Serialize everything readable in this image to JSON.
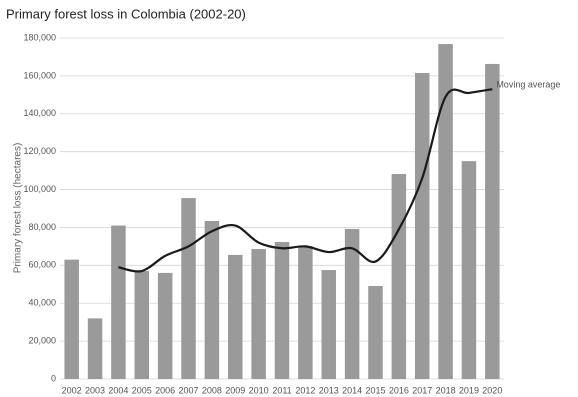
{
  "chart_data": {
    "type": "bar",
    "title": "Primary forest loss in Colombia (2002-20)",
    "y_label": "Primary forest loss (hectares)",
    "categories": [
      "2002",
      "2003",
      "2004",
      "2005",
      "2006",
      "2007",
      "2008",
      "2009",
      "2010",
      "2011",
      "2012",
      "2013",
      "2014",
      "2015",
      "2016",
      "2017",
      "2018",
      "2019",
      "2020"
    ],
    "values": [
      63000,
      32000,
      81000,
      57000,
      56000,
      95500,
      83400,
      65500,
      68600,
      72300,
      70200,
      57500,
      79200,
      49100,
      108200,
      161500,
      176800,
      115000,
      166300
    ],
    "color": "#9a9a9a",
    "line": {
      "name": "Moving average",
      "color": "#1a1a1a",
      "values": [
        null,
        null,
        59000,
        57000,
        65000,
        70000,
        78000,
        81000,
        72000,
        69000,
        70000,
        67000,
        69000,
        62000,
        79000,
        106000,
        149000,
        151000,
        153000
      ]
    },
    "ylim": [
      0,
      180000
    ],
    "yticks": [
      0,
      {
        "value": 20000,
        "label": "20,000"
      },
      {
        "value": 40000,
        "label": "40,000"
      },
      {
        "value": 60000,
        "label": "60,000"
      },
      {
        "value": 80000,
        "label": "80,000"
      },
      {
        "value": 100000,
        "label": "100,000"
      },
      {
        "value": 120000,
        "label": "120,000"
      },
      {
        "value": 140000,
        "label": "140,000"
      },
      {
        "value": 160000,
        "label": "160,000"
      },
      {
        "value": 180000,
        "label": "180,000"
      }
    ],
    "grid": true
  }
}
